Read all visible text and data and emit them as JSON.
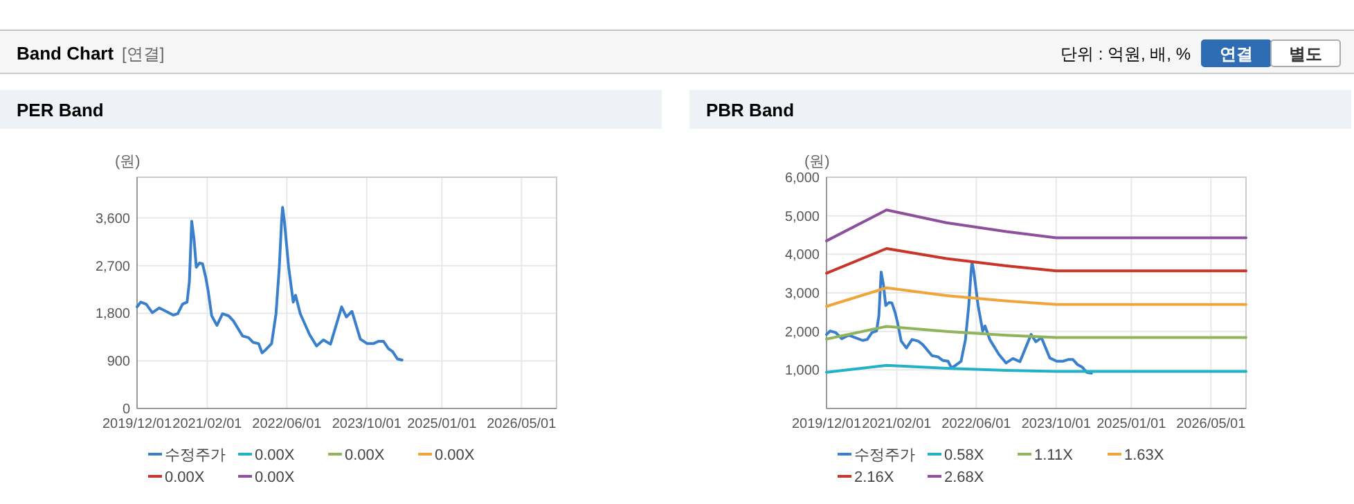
{
  "chart_data": [
    {
      "type": "other",
      "title": "Band Chart",
      "subtitle": "[연결]",
      "annotations": [
        "단위 : 억원, 배, %",
        "연결",
        "별도"
      ]
    },
    {
      "type": "line",
      "title": "PER Band",
      "ylabel": "(원)",
      "legend": "bottom",
      "grid": true,
      "marker": "none",
      "line_style": "solid",
      "xlim": [
        "2019-12-01",
        "2026-12-01"
      ],
      "ylim": [
        0,
        4370
      ],
      "xticks": [
        {
          "value": "2019-12-01",
          "label": "2019/12/01"
        },
        {
          "value": "2021-02-01",
          "label": "2021/02/01"
        },
        {
          "value": "2022-06-01",
          "label": "2022/06/01"
        },
        {
          "value": "2023-10-01",
          "label": "2023/10/01"
        },
        {
          "value": "2025-01-01",
          "label": "2025/01/01"
        },
        {
          "value": "2026-05-01",
          "label": "2026/05/01"
        }
      ],
      "yticks": [
        0,
        900,
        {
          "value": 1800,
          "label": "1,800"
        },
        {
          "value": 2700,
          "label": "2,700"
        },
        {
          "value": 3600,
          "label": "3,600"
        }
      ],
      "series": [
        {
          "name": "수정주가",
          "color": "#3a7fcc",
          "x": [
            "2019-12-01",
            "2019-12-23",
            "2020-01-26",
            "2020-03-03",
            "2020-04-14",
            "2020-05-26",
            "2020-07-08",
            "2020-08-05",
            "2020-09-03",
            "2020-10-01",
            "2020-10-15",
            "2020-10-29",
            "2020-11-12",
            "2020-11-26",
            "2020-12-16",
            "2021-01-03",
            "2021-01-22",
            "2021-02-06",
            "2021-02-28",
            "2021-04-01",
            "2021-05-05",
            "2021-06-11",
            "2021-07-09",
            "2021-09-04",
            "2021-10-10",
            "2021-11-07",
            "2021-12-11",
            "2022-01-01",
            "2022-01-23",
            "2022-02-28",
            "2022-03-27",
            "2022-04-16",
            "2022-04-30",
            "2022-05-06",
            "2022-05-17",
            "2022-06-12",
            "2022-07-10",
            "2022-07-24",
            "2022-08-22",
            "2022-10-17",
            "2022-11-29",
            "2023-01-10",
            "2023-02-22",
            "2023-05-01",
            "2023-05-30",
            "2023-07-03",
            "2023-08-23",
            "2023-10-04",
            "2023-11-10",
            "2023-12-13",
            "2024-01-11",
            "2024-02-09",
            "2024-03-07",
            "2024-04-05",
            "2024-05-03"
          ],
          "values": [
            1920,
            2010,
            1970,
            1810,
            1900,
            1835,
            1765,
            1790,
            1970,
            2010,
            2400,
            3540,
            3210,
            2670,
            2750,
            2735,
            2490,
            2230,
            1750,
            1570,
            1790,
            1750,
            1660,
            1370,
            1340,
            1250,
            1225,
            1050,
            1110,
            1225,
            1790,
            2670,
            3540,
            3800,
            3540,
            2670,
            2010,
            2140,
            1790,
            1400,
            1180,
            1295,
            1215,
            1920,
            1730,
            1835,
            1310,
            1225,
            1225,
            1270,
            1270,
            1135,
            1075,
            935,
            915
          ]
        },
        {
          "name": "0.00X",
          "color": "#22b2c8"
        },
        {
          "name": "0.00X",
          "color": "#8fb45c"
        },
        {
          "name": "0.00X",
          "color": "#f0a43c"
        },
        {
          "name": "0.00X",
          "color": "#c8352b"
        },
        {
          "name": "0.00X",
          "color": "#8e4f9c"
        }
      ]
    },
    {
      "type": "line",
      "title": "PBR Band",
      "ylabel": "(원)",
      "legend": "bottom",
      "grid": true,
      "marker": "none",
      "line_style": "solid",
      "xlim": [
        "2019-12-01",
        "2026-12-01"
      ],
      "ylim": [
        0,
        6000
      ],
      "xticks": [
        {
          "value": "2019-12-01",
          "label": "2019/12/01"
        },
        {
          "value": "2021-02-01",
          "label": "2021/02/01"
        },
        {
          "value": "2022-06-01",
          "label": "2022/06/01"
        },
        {
          "value": "2023-10-01",
          "label": "2023/10/01"
        },
        {
          "value": "2025-01-01",
          "label": "2025/01/01"
        },
        {
          "value": "2026-05-01",
          "label": "2026/05/01"
        }
      ],
      "yticks": [
        {
          "value": 1000,
          "label": "1,000"
        },
        {
          "value": 2000,
          "label": "2,000"
        },
        {
          "value": 3000,
          "label": "3,000"
        },
        {
          "value": 4000,
          "label": "4,000"
        },
        {
          "value": 5000,
          "label": "5,000"
        },
        {
          "value": 6000,
          "label": "6,000"
        }
      ],
      "series": [
        {
          "name": "수정주가",
          "color": "#3a7fcc",
          "x": [
            "2019-12-01",
            "2019-12-23",
            "2020-01-26",
            "2020-03-03",
            "2020-04-14",
            "2020-05-26",
            "2020-07-08",
            "2020-08-05",
            "2020-09-03",
            "2020-10-01",
            "2020-10-15",
            "2020-10-29",
            "2020-11-12",
            "2020-11-26",
            "2020-12-16",
            "2021-01-03",
            "2021-01-22",
            "2021-02-06",
            "2021-02-28",
            "2021-04-01",
            "2021-05-05",
            "2021-06-11",
            "2021-07-09",
            "2021-09-04",
            "2021-10-10",
            "2021-11-07",
            "2021-12-11",
            "2022-01-01",
            "2022-01-23",
            "2022-02-28",
            "2022-03-27",
            "2022-04-16",
            "2022-04-30",
            "2022-05-06",
            "2022-05-17",
            "2022-06-12",
            "2022-07-10",
            "2022-07-24",
            "2022-08-22",
            "2022-10-17",
            "2022-11-29",
            "2023-01-10",
            "2023-02-22",
            "2023-05-01",
            "2023-05-30",
            "2023-07-03",
            "2023-08-23",
            "2023-10-04",
            "2023-11-10",
            "2023-12-13",
            "2024-01-11",
            "2024-02-09",
            "2024-03-07",
            "2024-04-05",
            "2024-05-03"
          ],
          "values": [
            1920,
            2010,
            1970,
            1810,
            1900,
            1835,
            1765,
            1790,
            1970,
            2010,
            2400,
            3540,
            3210,
            2670,
            2750,
            2735,
            2490,
            2230,
            1750,
            1570,
            1790,
            1750,
            1660,
            1370,
            1340,
            1250,
            1225,
            1050,
            1110,
            1225,
            1790,
            2670,
            3540,
            3800,
            3540,
            2670,
            2010,
            2140,
            1790,
            1400,
            1180,
            1295,
            1215,
            1920,
            1730,
            1835,
            1310,
            1225,
            1225,
            1270,
            1270,
            1135,
            1075,
            935,
            915
          ]
        },
        {
          "name": "0.58X",
          "color": "#22b2c8",
          "x": [
            "2019-12-01",
            "2020-12-01",
            "2021-12-01",
            "2022-12-01",
            "2023-10-01",
            "2026-12-01"
          ],
          "values": [
            940,
            1120,
            1040,
            990,
            960,
            960
          ]
        },
        {
          "name": "1.11X",
          "color": "#8fb45c",
          "x": [
            "2019-12-01",
            "2020-12-01",
            "2021-12-01",
            "2022-12-01",
            "2023-10-01",
            "2026-12-01"
          ],
          "values": [
            1800,
            2130,
            2000,
            1900,
            1840,
            1840
          ]
        },
        {
          "name": "1.63X",
          "color": "#f0a43c",
          "x": [
            "2019-12-01",
            "2020-12-01",
            "2021-12-01",
            "2022-12-01",
            "2023-10-01",
            "2026-12-01"
          ],
          "values": [
            2650,
            3130,
            2930,
            2790,
            2700,
            2700
          ]
        },
        {
          "name": "2.16X",
          "color": "#c8352b",
          "x": [
            "2019-12-01",
            "2020-12-01",
            "2021-12-01",
            "2022-12-01",
            "2023-10-01",
            "2026-12-01"
          ],
          "values": [
            3510,
            4150,
            3890,
            3700,
            3570,
            3570
          ]
        },
        {
          "name": "2.68X",
          "color": "#8e4f9c",
          "x": [
            "2019-12-01",
            "2020-12-01",
            "2021-12-01",
            "2022-12-01",
            "2023-10-01",
            "2026-12-01"
          ],
          "values": [
            4350,
            5150,
            4820,
            4590,
            4430,
            4430
          ]
        }
      ]
    }
  ]
}
